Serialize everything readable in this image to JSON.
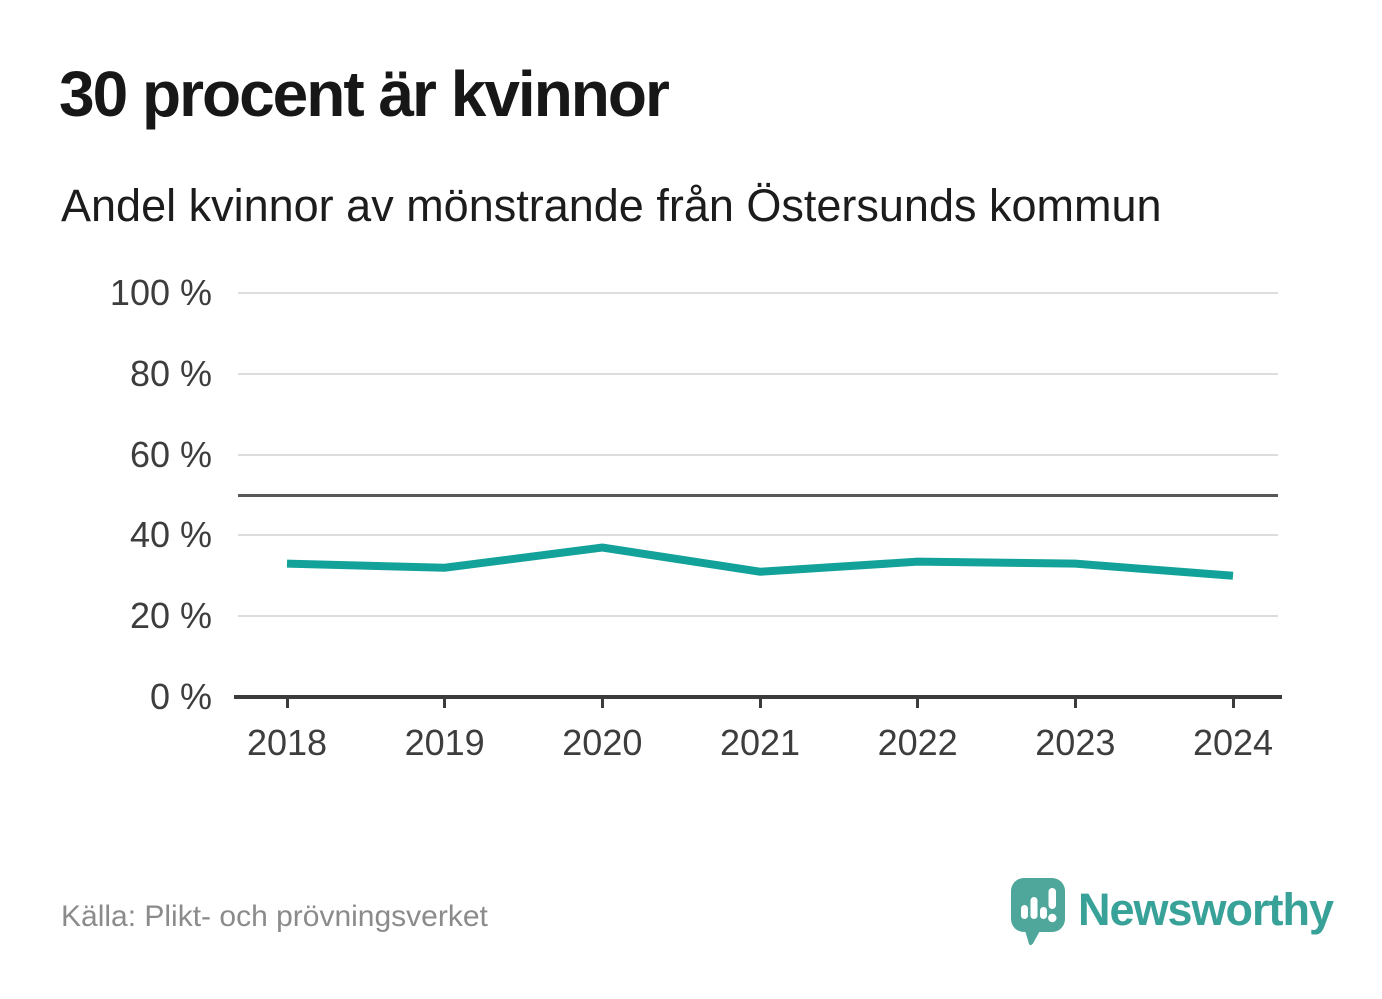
{
  "header": {
    "title": "30 procent är kvinnor",
    "subtitle": "Andel kvinnor av mönstrande från Östersunds kommun"
  },
  "chart_data": {
    "type": "line",
    "title": "30 procent är kvinnor",
    "subtitle": "Andel kvinnor av mönstrande från Östersunds kommun",
    "x": [
      2018,
      2019,
      2020,
      2021,
      2022,
      2023,
      2024
    ],
    "xtick_labels": [
      "2018",
      "2019",
      "2020",
      "2021",
      "2022",
      "2023",
      "2024"
    ],
    "series": [
      {
        "name": "Andel kvinnor av mönstrande",
        "values": [
          33,
          32,
          37,
          31,
          33.5,
          33,
          30
        ],
        "color": "#12a29a"
      }
    ],
    "ylim": [
      0,
      100
    ],
    "yticks": [
      0,
      20,
      40,
      60,
      80,
      100
    ],
    "ytick_labels": [
      "0 %",
      "20 %",
      "40 %",
      "60 %",
      "80 %",
      "100 %"
    ],
    "unit": "%",
    "grid": true,
    "legend": "none",
    "reference_line": {
      "value": 50,
      "color": "#58585a"
    },
    "colors": {
      "line": "#12a29a",
      "gridline": "#dddddd",
      "axis": "#3b3b3b",
      "reference": "#58585a"
    }
  },
  "footer": {
    "source": "Källa: Plikt- och prövningsverket",
    "brand": {
      "name": "Newsworthy",
      "color": "#38a198",
      "icon": "speech-bubble-bar-chart-icon",
      "icon_color": "#4fa79b"
    }
  }
}
